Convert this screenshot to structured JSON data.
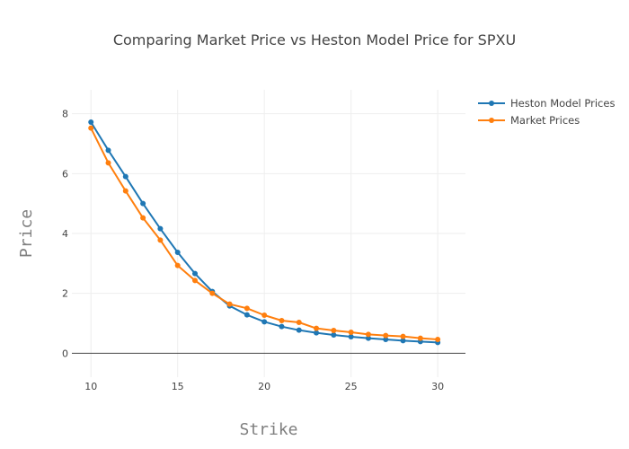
{
  "chart_data": {
    "type": "line",
    "title": "Comparing Market Price vs Heston Model Price for SPXU",
    "xlabel": "Strike",
    "ylabel": "Price",
    "xlim": [
      8.9,
      31.6
    ],
    "ylim": [
      -0.8,
      8.8
    ],
    "xticks": [
      10,
      15,
      20,
      25,
      30
    ],
    "yticks": [
      0,
      2,
      4,
      6,
      8
    ],
    "grid": true,
    "legend_position": "top-right",
    "x": [
      10,
      11,
      12,
      13,
      14,
      15,
      16,
      17,
      18,
      19,
      20,
      21,
      22,
      23,
      24,
      25,
      26,
      27,
      28,
      29,
      30
    ],
    "series": [
      {
        "name": "Heston Model Prices",
        "color": "#1f77b4",
        "values": [
          7.72,
          6.78,
          5.9,
          5.0,
          4.16,
          3.37,
          2.66,
          2.06,
          1.58,
          1.28,
          1.05,
          0.89,
          0.77,
          0.68,
          0.61,
          0.55,
          0.5,
          0.46,
          0.42,
          0.39,
          0.36
        ]
      },
      {
        "name": "Market Prices",
        "color": "#ff7f0e",
        "values": [
          7.52,
          6.36,
          5.42,
          4.52,
          3.78,
          2.93,
          2.43,
          2.0,
          1.64,
          1.5,
          1.27,
          1.09,
          1.03,
          0.83,
          0.76,
          0.7,
          0.63,
          0.59,
          0.56,
          0.5,
          0.46
        ]
      }
    ]
  }
}
